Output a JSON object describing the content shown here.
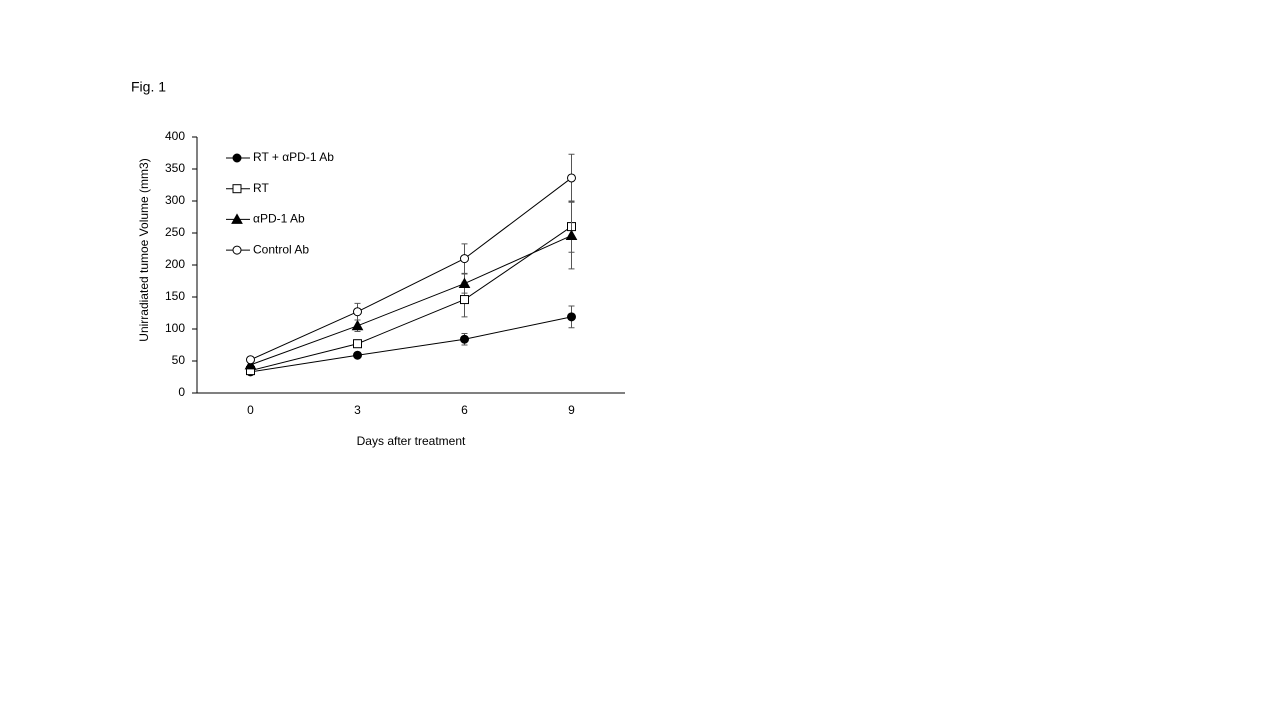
{
  "chart_data": {
    "type": "line",
    "title": "Fig. 1",
    "x_label": "Days after treatment",
    "y_label": "Unirradiated tumoe Volume (mm3)",
    "x": [
      0,
      3,
      6,
      9
    ],
    "xlim": [
      -1.5,
      10.5
    ],
    "xticks": [
      0,
      3,
      6,
      9
    ],
    "ylim": [
      0,
      400
    ],
    "yticks": [
      0,
      50,
      100,
      150,
      200,
      250,
      300,
      350,
      400
    ],
    "grid": false,
    "legend": "upper left",
    "series": [
      {
        "name": "RT +  αPD-1 Ab",
        "color": "#000000",
        "marker": "circle-filled",
        "values": [
          33,
          59,
          84,
          119
        ],
        "errors": [
          3,
          4,
          9,
          17
        ]
      },
      {
        "name": "RT",
        "color": "#000000",
        "marker": "square-open",
        "values": [
          35,
          77,
          146,
          260
        ],
        "errors": [
          3,
          6,
          27,
          40
        ]
      },
      {
        "name": "αPD-1 Ab",
        "color": "#000000",
        "marker": "triangle-filled",
        "values": [
          44,
          105,
          171,
          246
        ],
        "errors": [
          4,
          9,
          15,
          52
        ]
      },
      {
        "name": "Control Ab",
        "color": "#000000",
        "marker": "circle-open",
        "values": [
          52,
          127,
          210,
          336
        ],
        "errors": [
          4,
          13,
          23,
          37
        ]
      }
    ]
  }
}
